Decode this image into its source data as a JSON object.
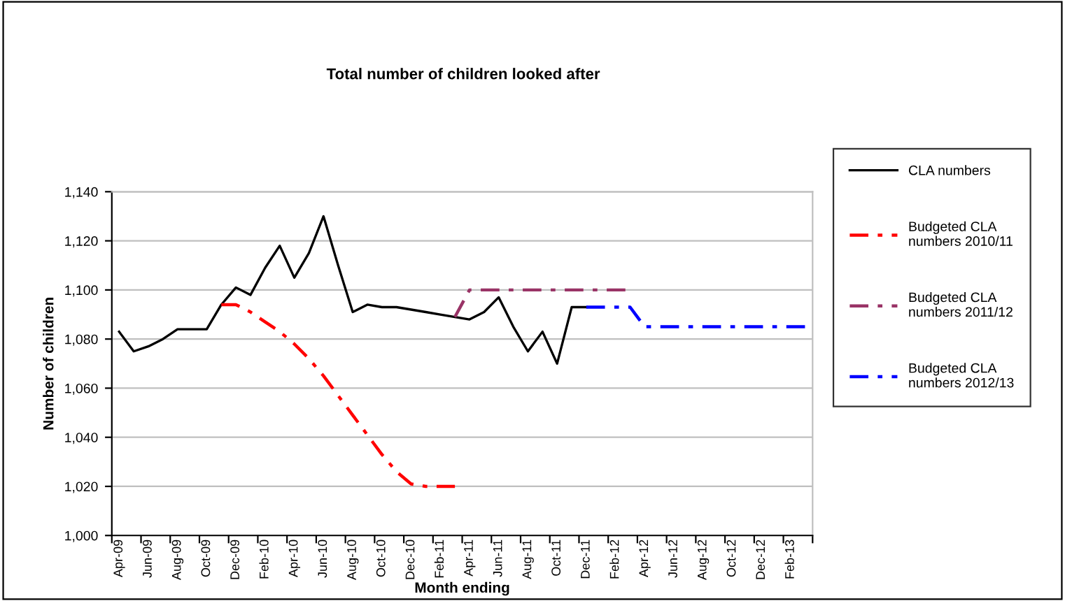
{
  "chart_data": {
    "type": "line",
    "title": "Total number of children looked after",
    "xlabel": "Month ending",
    "ylabel": "Number of children",
    "categories": [
      "Apr-09",
      null,
      "Jun-09",
      null,
      "Aug-09",
      null,
      "Oct-09",
      null,
      "Dec-09",
      null,
      "Feb-10",
      null,
      "Apr-10",
      null,
      "Jun-10",
      null,
      "Aug-10",
      null,
      "Oct-10",
      null,
      "Dec-10",
      null,
      "Feb-11",
      null,
      "Apr-11",
      null,
      "Jun-11",
      null,
      "Aug-11",
      null,
      "Oct-11",
      null,
      "Dec-11",
      null,
      "Feb-12",
      null,
      "Apr-12",
      null,
      "Jun-12",
      null,
      "Aug-12",
      null,
      "Oct-12",
      null,
      "Dec-12",
      null,
      "Feb-13",
      null
    ],
    "series": [
      {
        "name": "CLA numbers",
        "color": "#000000",
        "line_style": "solid",
        "values": [
          1083,
          1075,
          1077,
          1080,
          1084,
          1084,
          1084,
          1094,
          1101,
          1098,
          1109,
          1118,
          1105,
          1115,
          1130,
          1110,
          1091,
          1094,
          1093,
          1093,
          1092,
          1091,
          1090,
          1089,
          1088,
          1091,
          1097,
          1085,
          1075,
          1083,
          1070,
          1093,
          1093,
          null,
          null,
          null,
          null,
          null,
          null,
          null,
          null,
          null,
          null,
          null,
          null,
          null,
          null,
          null
        ]
      },
      {
        "name": "Budgeted CLA numbers 2010/11",
        "color": "#ff0000",
        "line_style": "dashed",
        "values": [
          null,
          null,
          null,
          null,
          null,
          null,
          null,
          1094,
          1094,
          1091,
          1087,
          1083,
          1078,
          1072,
          1065,
          1057,
          1049,
          1041,
          1033,
          1026,
          1021,
          1020,
          1020,
          1020,
          null,
          null,
          null,
          null,
          null,
          null,
          null,
          null,
          null,
          null,
          null,
          null,
          null,
          null,
          null,
          null,
          null,
          null,
          null,
          null,
          null,
          null,
          null,
          null
        ]
      },
      {
        "name": "Budgeted CLA numbers 2011/12",
        "color": "#993366",
        "line_style": "dashed",
        "values": [
          null,
          null,
          null,
          null,
          null,
          null,
          null,
          null,
          null,
          null,
          null,
          null,
          null,
          null,
          null,
          null,
          null,
          null,
          null,
          null,
          null,
          null,
          null,
          1089,
          1100,
          1100,
          1100,
          1100,
          1100,
          1100,
          1100,
          1100,
          1100,
          1100,
          1100,
          1100,
          null,
          null,
          null,
          null,
          null,
          null,
          null,
          null,
          null,
          null,
          null,
          null
        ]
      },
      {
        "name": "Budgeted CLA numbers 2012/13",
        "color": "#0000ff",
        "line_style": "dashed",
        "values": [
          null,
          null,
          null,
          null,
          null,
          null,
          null,
          null,
          null,
          null,
          null,
          null,
          null,
          null,
          null,
          null,
          null,
          null,
          null,
          null,
          null,
          null,
          null,
          null,
          null,
          null,
          null,
          null,
          null,
          null,
          null,
          null,
          1093,
          1093,
          1093,
          1093,
          1085,
          1085,
          1085,
          1085,
          1085,
          1085,
          1085,
          1085,
          1085,
          1085,
          1085,
          1085
        ]
      }
    ],
    "ylim": [
      1000,
      1140
    ],
    "yticks": [
      {
        "value": 1000,
        "label": "1,000"
      },
      {
        "value": 1020,
        "label": "1,020"
      },
      {
        "value": 1040,
        "label": "1,040"
      },
      {
        "value": 1060,
        "label": "1,060"
      },
      {
        "value": 1080,
        "label": "1,080"
      },
      {
        "value": 1100,
        "label": "1,100"
      },
      {
        "value": 1120,
        "label": "1,120"
      },
      {
        "value": 1140,
        "label": "1,140"
      }
    ],
    "grid": "y",
    "legend": "right",
    "marker": "none"
  }
}
